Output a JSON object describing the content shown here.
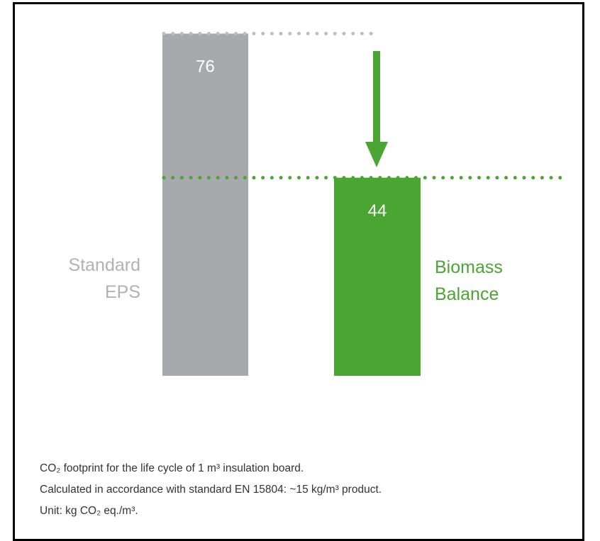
{
  "chart_data": {
    "type": "bar",
    "categories": [
      "Standard EPS",
      "Biomass Balance"
    ],
    "values": [
      76,
      44
    ],
    "colors": [
      "#a7a9ac",
      "#4aa533"
    ],
    "label_colors": [
      "#b1b1b1",
      "#4aa533"
    ],
    "notes": [
      "CO₂ footprint for the life cycle of 1 m³ insulation board.",
      "Calculated in accordance with standard EN 15804: ~15 kg/m³ product.",
      "Unit: kg CO₂ eq./m³."
    ]
  }
}
